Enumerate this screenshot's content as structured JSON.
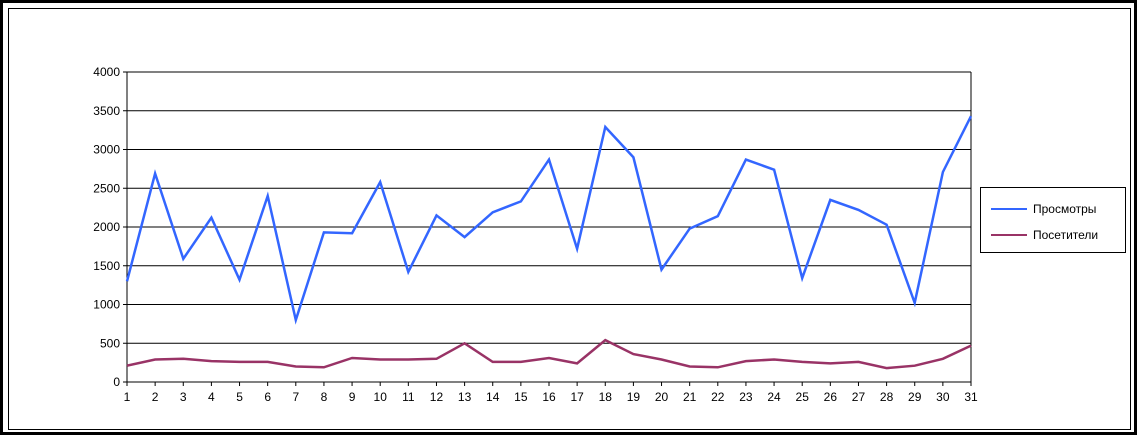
{
  "chart_data": {
    "type": "line",
    "x": [
      1,
      2,
      3,
      4,
      5,
      6,
      7,
      8,
      9,
      10,
      11,
      12,
      13,
      14,
      15,
      16,
      17,
      18,
      19,
      20,
      21,
      22,
      23,
      24,
      25,
      26,
      27,
      28,
      29,
      30,
      31
    ],
    "ylim": [
      0,
      4000
    ],
    "yticks": [
      0,
      500,
      1000,
      1500,
      2000,
      2500,
      3000,
      3500,
      4000
    ],
    "grid": "horizontal",
    "legend": "right",
    "series": [
      {
        "name": "Просмотры",
        "color": "#3366ff",
        "values": [
          1300,
          2690,
          1590,
          2120,
          1320,
          2400,
          800,
          1930,
          1920,
          2580,
          1420,
          2150,
          1870,
          2190,
          2330,
          2870,
          1720,
          3290,
          2900,
          1450,
          1980,
          2140,
          2870,
          2740,
          1340,
          2350,
          2220,
          2030,
          1020,
          2710,
          3430
        ]
      },
      {
        "name": "Посетители",
        "color": "#993366",
        "values": [
          210,
          290,
          300,
          270,
          260,
          260,
          200,
          190,
          310,
          290,
          290,
          300,
          500,
          260,
          260,
          310,
          240,
          540,
          360,
          290,
          200,
          190,
          270,
          290,
          260,
          240,
          260,
          180,
          210,
          300,
          470
        ]
      }
    ]
  }
}
